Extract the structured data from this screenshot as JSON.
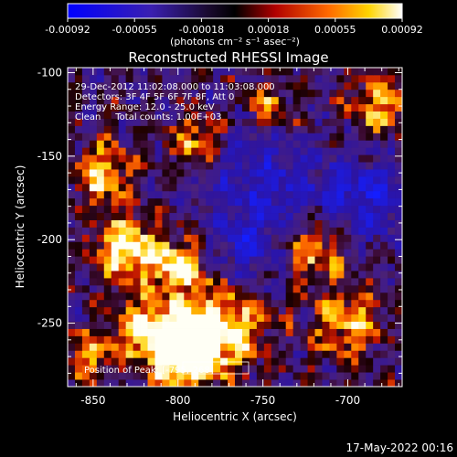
{
  "chart_data": {
    "type": "heatmap",
    "title": "Reconstructed RHESSI Image",
    "xlabel": "Heliocentric X (arcsec)",
    "ylabel": "Heliocentric Y (arcsec)",
    "xlim": [
      -865,
      -668
    ],
    "ylim": [
      -288,
      -97
    ],
    "x_ticks": [
      -850,
      -800,
      -750,
      -700
    ],
    "y_ticks": [
      -100,
      -150,
      -200,
      -250
    ],
    "colorbar": {
      "range": [
        -0.00092,
        0.00092
      ],
      "ticks": [
        "-0.00092",
        "-0.00055",
        "-0.00018",
        "0.00018",
        "0.00055",
        "0.00092"
      ],
      "unit_label": "(photons cm⁻² s⁻¹ asec⁻²)",
      "colormap": "blue-black-red-yellow-white"
    },
    "info_lines": [
      "29-Dec-2012 11:02:08.000 to 11:03:08.000",
      "Detectors: 3F 4F 5F 6F 7F 8F, Att 0",
      "Energy Range: 12.0 - 25.0 keV",
      "Clean     Total counts: 1.00E+03"
    ],
    "peak_label": "Position of Peak: [-795,-268]",
    "peak": {
      "x": -795,
      "y": -268
    },
    "grid_size": [
      46,
      44
    ],
    "hot_regions": [
      {
        "x": -795,
        "y": -268,
        "sigma": 12,
        "amp": 1.6
      },
      {
        "x": -775,
        "y": -252,
        "sigma": 18,
        "amp": 1.0
      },
      {
        "x": -830,
        "y": -205,
        "sigma": 14,
        "amp": 0.95
      },
      {
        "x": -800,
        "y": -215,
        "sigma": 12,
        "amp": 0.8
      },
      {
        "x": -845,
        "y": -160,
        "sigma": 12,
        "amp": 0.8
      },
      {
        "x": -790,
        "y": -140,
        "sigma": 10,
        "amp": 0.7
      },
      {
        "x": -720,
        "y": -205,
        "sigma": 14,
        "amp": 0.75
      },
      {
        "x": -700,
        "y": -250,
        "sigma": 14,
        "amp": 0.7
      },
      {
        "x": -680,
        "y": -120,
        "sigma": 12,
        "amp": 0.75
      },
      {
        "x": -745,
        "y": -120,
        "sigma": 10,
        "amp": 0.6
      },
      {
        "x": -855,
        "y": -270,
        "sigma": 10,
        "amp": 0.6
      },
      {
        "x": -820,
        "y": -255,
        "sigma": 14,
        "amp": 0.8
      }
    ],
    "cold_regions": [
      {
        "x": -750,
        "y": -170,
        "sigma": 25,
        "amp": -0.6
      },
      {
        "x": -690,
        "y": -175,
        "sigma": 18,
        "amp": -0.7
      },
      {
        "x": -760,
        "y": -210,
        "sigma": 15,
        "amp": -0.45
      }
    ]
  },
  "timestamp": "17-May-2022 00:16"
}
